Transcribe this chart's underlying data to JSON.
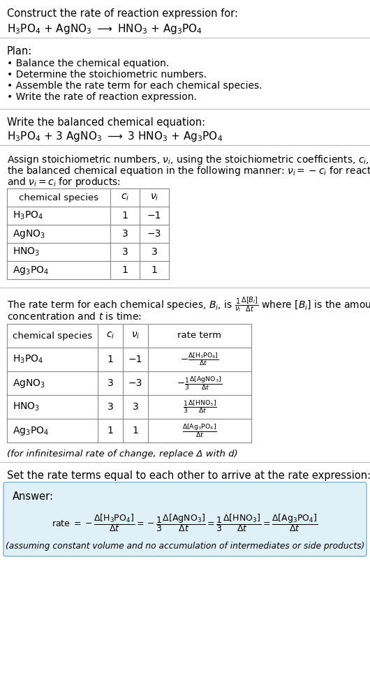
{
  "bg_color": "#ffffff",
  "title_line1": "Construct the rate of reaction expression for:",
  "plan_header": "Plan:",
  "plan_items": [
    "• Balance the chemical equation.",
    "• Determine the stoichiometric numbers.",
    "• Assemble the rate term for each chemical species.",
    "• Write the rate of reaction expression."
  ],
  "balanced_header": "Write the balanced chemical equation:",
  "stoich_header_line1": "Assign stoichiometric numbers, $\\nu_i$, using the stoichiometric coefficients, $c_i$, from",
  "stoich_header_line2": "the balanced chemical equation in the following manner: $\\nu_i = -c_i$ for reactants",
  "stoich_header_line3": "and $\\nu_i = c_i$ for products:",
  "table1_headers": [
    "chemical species",
    "c_i",
    "v_i"
  ],
  "table1_species": [
    "$\\mathrm{H_3PO_4}$",
    "$\\mathrm{AgNO_3}$",
    "$\\mathrm{HNO_3}$",
    "$\\mathrm{Ag_3PO_4}$"
  ],
  "table1_ci": [
    "1",
    "3",
    "3",
    "1"
  ],
  "table1_vi": [
    "−1",
    "−3",
    "3",
    "1"
  ],
  "rate_desc_line1": "The rate term for each chemical species, $B_i$, is $\\frac{1}{\\nu_i}\\frac{\\Delta[B_i]}{\\Delta t}$ where $[B_i]$ is the amount",
  "rate_desc_line2": "concentration and $t$ is time:",
  "table2_headers": [
    "chemical species",
    "c_i",
    "v_i",
    "rate term"
  ],
  "table2_species": [
    "$\\mathrm{H_3PO_4}$",
    "$\\mathrm{AgNO_3}$",
    "$\\mathrm{HNO_3}$",
    "$\\mathrm{Ag_3PO_4}$"
  ],
  "table2_ci": [
    "1",
    "3",
    "3",
    "1"
  ],
  "table2_vi": [
    "−1",
    "−3",
    "3",
    "1"
  ],
  "table2_rate": [
    "$-\\frac{\\Delta[\\mathrm{H_3PO_4}]}{\\Delta t}$",
    "$-\\frac{1}{3}\\frac{\\Delta[\\mathrm{AgNO_3}]}{\\Delta t}$",
    "$\\frac{1}{3}\\frac{\\Delta[\\mathrm{HNO_3}]}{\\Delta t}$",
    "$\\frac{\\Delta[\\mathrm{Ag_3PO_4}]}{\\Delta t}$"
  ],
  "infinitesimal_note": "(for infinitesimal rate of change, replace Δ with d)",
  "set_equal_header": "Set the rate terms equal to each other to arrive at the rate expression:",
  "answer_label": "Answer:",
  "answer_box_color": "#dff0f7",
  "answer_box_border": "#90bfd4",
  "assuming_note": "(assuming constant volume and no accumulation of intermediates or side products)"
}
